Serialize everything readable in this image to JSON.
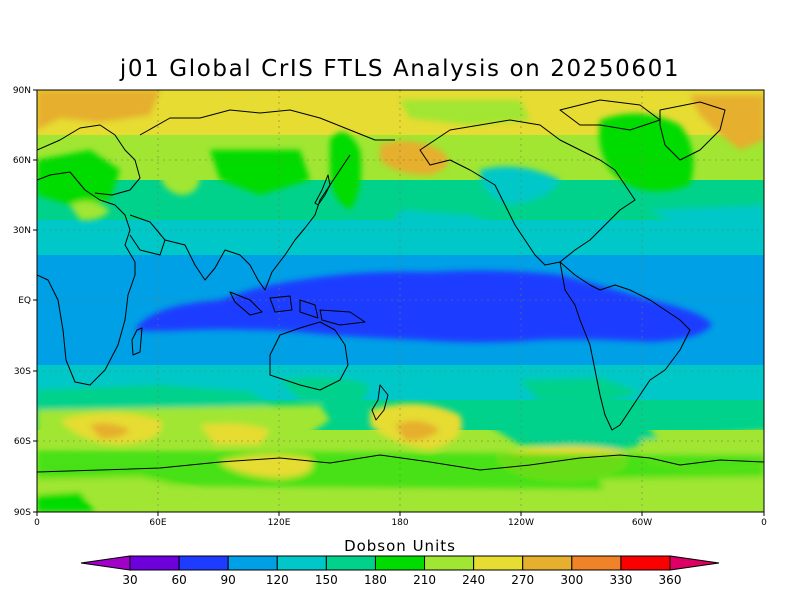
{
  "title": "j01 Global CrIS FTLS Analysis on 20250601",
  "y_axis_labels": [
    "90N",
    "60N",
    "30N",
    "EQ",
    "30S",
    "60S",
    "90S"
  ],
  "x_axis_labels": [
    "0",
    "60E",
    "120E",
    "180",
    "120W",
    "60W",
    "0"
  ],
  "colorbar": {
    "title": "Dobson Units",
    "tick_labels": [
      "30",
      "60",
      "90",
      "120",
      "150",
      "180",
      "210",
      "240",
      "270",
      "300",
      "330",
      "360"
    ],
    "colors": [
      "#a000c8",
      "#6e00dc",
      "#1e3cff",
      "#00a0e6",
      "#00c8c8",
      "#00d28c",
      "#00dc00",
      "#a0e632",
      "#e6dc32",
      "#e6af2d",
      "#f08228",
      "#fa0000",
      "#dc0064"
    ]
  }
}
